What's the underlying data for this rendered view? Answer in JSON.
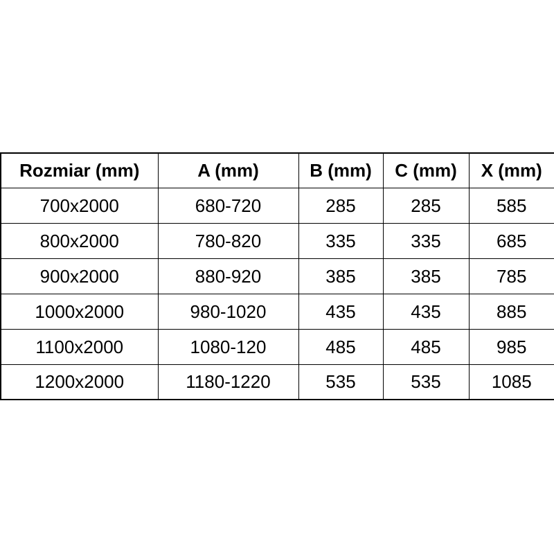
{
  "chart_data": {
    "type": "table",
    "title": "",
    "columns": [
      "Rozmiar (mm)",
      "A (mm)",
      "B (mm)",
      "C (mm)",
      "X (mm)"
    ],
    "rows": [
      [
        "700x2000",
        "680-720",
        "285",
        "285",
        "585"
      ],
      [
        "800x2000",
        "780-820",
        "335",
        "335",
        "685"
      ],
      [
        "900x2000",
        "880-920",
        "385",
        "385",
        "785"
      ],
      [
        "1000x2000",
        "980-1020",
        "435",
        "435",
        "885"
      ],
      [
        "1100x2000",
        "1080-120",
        "485",
        "485",
        "985"
      ],
      [
        "1200x2000",
        "1180-1220",
        "535",
        "535",
        "1085"
      ]
    ]
  },
  "colors": {
    "border": "#000000",
    "text": "#000000",
    "background": "#ffffff"
  }
}
